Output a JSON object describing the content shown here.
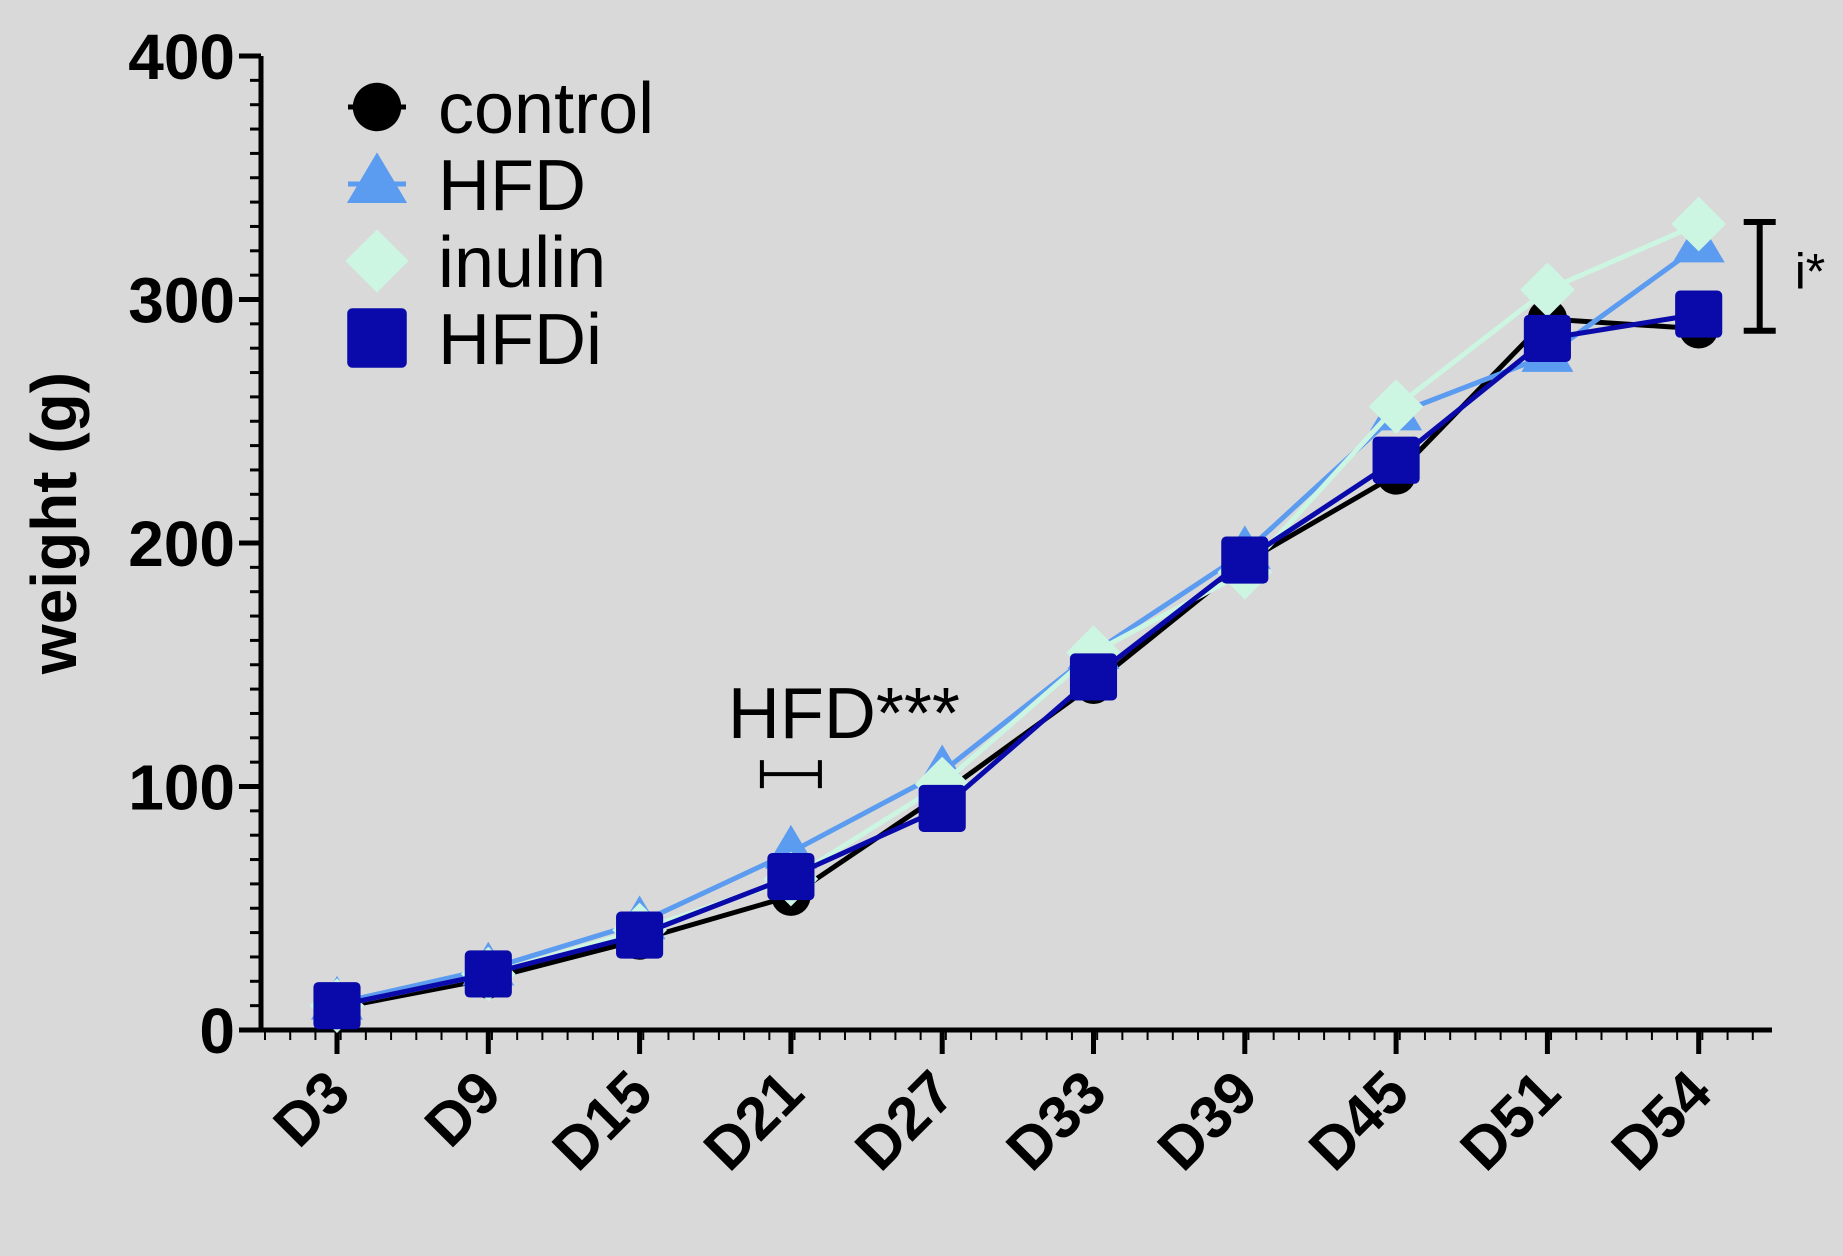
{
  "chart_data": {
    "type": "line",
    "title": "",
    "xlabel": "",
    "ylabel": "weight (g)",
    "categories": [
      "D3",
      "D9",
      "D15",
      "D21",
      "D27",
      "D33",
      "D39",
      "D45",
      "D51",
      "D54"
    ],
    "yticks": [
      "0",
      "100",
      "200",
      "300",
      "400"
    ],
    "ylim": [
      0,
      400
    ],
    "grid": false,
    "legend_position": "top-left",
    "series": [
      {
        "name": "control",
        "marker": "circle",
        "color": "#000000",
        "values": [
          9,
          21,
          37,
          55,
          97,
          142,
          192,
          228,
          292,
          288
        ]
      },
      {
        "name": "HFD",
        "marker": "triangle",
        "color": "#5b9bf0",
        "values": [
          11,
          25,
          44,
          73,
          106,
          155,
          196,
          253,
          277,
          322
        ]
      },
      {
        "name": "inulin",
        "marker": "diamond",
        "color": "#ccf5e2",
        "values": [
          10,
          23,
          41,
          62,
          101,
          155,
          188,
          256,
          304,
          331
        ]
      },
      {
        "name": "HFDi",
        "marker": "square",
        "color": "#0a0aaa",
        "values": [
          10,
          23,
          39,
          63,
          91,
          145,
          193,
          234,
          284,
          294
        ]
      }
    ],
    "annotations": [
      {
        "text": "HFD***",
        "category": "D21",
        "bar_from": "D21",
        "y": 110
      },
      {
        "text": "i*",
        "category": "D54",
        "bar_range": [
          288,
          331
        ]
      }
    ]
  }
}
